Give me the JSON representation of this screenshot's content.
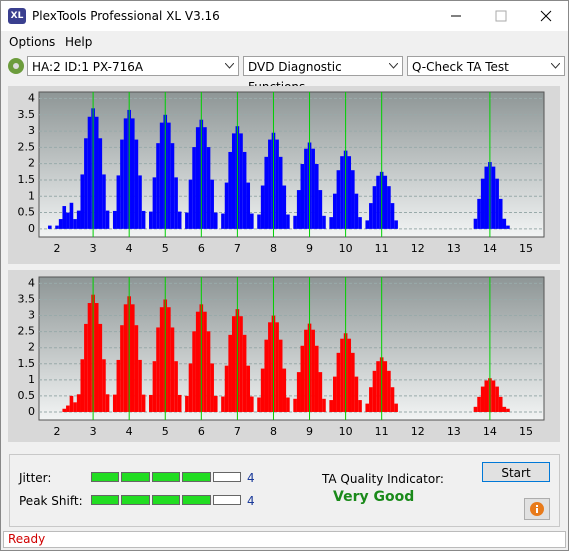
{
  "window": {
    "icon": "XL",
    "title": "PlexTools Professional XL V3.16"
  },
  "menu": [
    "Options",
    "Help"
  ],
  "toolbar": {
    "drive": "HA:2 ID:1  PX-716A",
    "function": "DVD Diagnostic Functions",
    "test": "Q-Check TA Test"
  },
  "chart_data": [
    {
      "type": "bar",
      "color": "#0000ff",
      "grid": true,
      "vline_color": "#00d000",
      "xlim": [
        1.5,
        15.5
      ],
      "xticks": [
        2,
        3,
        4,
        5,
        6,
        7,
        8,
        9,
        10,
        11,
        12,
        13,
        14,
        15
      ],
      "ylim": [
        -0.25,
        4.2
      ],
      "yticks": [
        4,
        3.5,
        3,
        2.5,
        2,
        1.5,
        1,
        0.5,
        0
      ],
      "vlines": [
        3,
        4,
        5,
        6,
        7,
        8,
        9,
        10,
        11,
        14
      ],
      "x": [
        1.8,
        1.9,
        2,
        2.1,
        2.2,
        2.3,
        2.4,
        2.5,
        2.6,
        2.7,
        2.8,
        2.9,
        3,
        3.1,
        3.2,
        3.3,
        3.4,
        3.5,
        3.6,
        3.7,
        3.8,
        3.9,
        4,
        4.1,
        4.2,
        4.3,
        4.4,
        4.5,
        4.6,
        4.7,
        4.8,
        4.9,
        5,
        5.1,
        5.2,
        5.3,
        5.4,
        5.5,
        5.6,
        5.7,
        5.8,
        5.9,
        6,
        6.1,
        6.2,
        6.3,
        6.4,
        6.5,
        6.6,
        6.7,
        6.8,
        6.9,
        7,
        7.1,
        7.2,
        7.3,
        7.4,
        7.5,
        7.6,
        7.7,
        7.8,
        7.9,
        8,
        8.1,
        8.2,
        8.3,
        8.4,
        8.5,
        8.6,
        8.7,
        8.8,
        8.9,
        9,
        9.1,
        9.2,
        9.3,
        9.4,
        9.5,
        9.6,
        9.7,
        9.8,
        9.9,
        10,
        10.1,
        10.2,
        10.3,
        10.4,
        10.5,
        10.6,
        10.7,
        10.8,
        10.9,
        11,
        11.1,
        11.2,
        11.3,
        11.4,
        11.5,
        11.6,
        11.7,
        11.8,
        11.9,
        12,
        12.1,
        12.2,
        12.3,
        12.4,
        12.5,
        12.6,
        12.7,
        12.8,
        12.9,
        13,
        13.1,
        13.2,
        13.3,
        13.4,
        13.5,
        13.6,
        13.7,
        13.8,
        13.9,
        14,
        14.1,
        14.2,
        14.3,
        14.4,
        14.5,
        14.6
      ],
      "values": [
        0.1,
        0,
        0.1,
        0.3,
        0.7,
        0.5,
        0.8,
        0.3,
        0.56,
        1.67,
        2.78,
        3.44,
        3.7,
        3.44,
        2.78,
        1.67,
        0.56,
        0,
        0.55,
        1.64,
        2.74,
        3.39,
        3.65,
        3.39,
        2.74,
        1.64,
        0.55,
        0,
        0.53,
        1.58,
        2.63,
        3.26,
        3.5,
        3.26,
        2.63,
        1.58,
        0.53,
        0,
        0.5,
        1.51,
        2.51,
        3.12,
        3.35,
        3.12,
        2.51,
        1.51,
        0.5,
        0,
        0.47,
        1.42,
        2.36,
        2.93,
        3.15,
        2.93,
        2.36,
        1.42,
        0.47,
        0,
        0.44,
        1.33,
        2.21,
        2.74,
        2.95,
        2.74,
        2.21,
        1.33,
        0.44,
        0,
        0.4,
        1.19,
        1.99,
        2.46,
        2.65,
        2.46,
        1.99,
        1.19,
        0.4,
        0,
        0.36,
        1.08,
        1.8,
        2.23,
        2.4,
        2.23,
        1.8,
        1.08,
        0.36,
        0,
        0.26,
        0.79,
        1.31,
        1.63,
        1.75,
        1.63,
        1.31,
        0.79,
        0.26,
        0,
        0,
        0,
        0,
        0,
        0,
        0,
        0,
        0,
        0,
        0,
        0,
        0,
        0,
        0,
        0,
        0,
        0,
        0,
        0,
        0,
        0.31,
        0.92,
        1.54,
        1.91,
        2.05,
        1.91,
        1.54,
        0.92,
        0.31,
        0.1,
        0
      ]
    },
    {
      "type": "bar",
      "color": "#ff0000",
      "grid": true,
      "vline_color": "#00d000",
      "xlim": [
        1.5,
        15.5
      ],
      "xticks": [
        2,
        3,
        4,
        5,
        6,
        7,
        8,
        9,
        10,
        11,
        12,
        13,
        14,
        15
      ],
      "ylim": [
        -0.25,
        4.2
      ],
      "yticks": [
        4,
        3.5,
        3,
        2.5,
        2,
        1.5,
        1,
        0.5,
        0
      ],
      "vlines": [
        3,
        4,
        5,
        6,
        7,
        8,
        9,
        10,
        11,
        14
      ],
      "x": [
        1.8,
        1.9,
        2,
        2.1,
        2.2,
        2.3,
        2.4,
        2.5,
        2.6,
        2.7,
        2.8,
        2.9,
        3,
        3.1,
        3.2,
        3.3,
        3.4,
        3.5,
        3.6,
        3.7,
        3.8,
        3.9,
        4,
        4.1,
        4.2,
        4.3,
        4.4,
        4.5,
        4.6,
        4.7,
        4.8,
        4.9,
        5,
        5.1,
        5.2,
        5.3,
        5.4,
        5.5,
        5.6,
        5.7,
        5.8,
        5.9,
        6,
        6.1,
        6.2,
        6.3,
        6.4,
        6.5,
        6.6,
        6.7,
        6.8,
        6.9,
        7,
        7.1,
        7.2,
        7.3,
        7.4,
        7.5,
        7.6,
        7.7,
        7.8,
        7.9,
        8,
        8.1,
        8.2,
        8.3,
        8.4,
        8.5,
        8.6,
        8.7,
        8.8,
        8.9,
        9,
        9.1,
        9.2,
        9.3,
        9.4,
        9.5,
        9.6,
        9.7,
        9.8,
        9.9,
        10,
        10.1,
        10.2,
        10.3,
        10.4,
        10.5,
        10.6,
        10.7,
        10.8,
        10.9,
        11,
        11.1,
        11.2,
        11.3,
        11.4,
        11.5,
        11.6,
        11.7,
        11.8,
        11.9,
        12,
        12.1,
        12.2,
        12.3,
        12.4,
        12.5,
        12.6,
        12.7,
        12.8,
        12.9,
        13,
        13.1,
        13.2,
        13.3,
        13.4,
        13.5,
        13.6,
        13.7,
        13.8,
        13.9,
        14,
        14.1,
        14.2,
        14.3,
        14.4,
        14.5,
        14.6
      ],
      "values": [
        0,
        0,
        0,
        0,
        0.1,
        0.2,
        0.5,
        0.3,
        0.55,
        1.64,
        2.74,
        3.39,
        3.65,
        3.39,
        2.74,
        1.64,
        0.55,
        0,
        0.54,
        1.62,
        2.7,
        3.35,
        3.6,
        3.35,
        2.7,
        1.62,
        0.54,
        0,
        0.53,
        1.58,
        2.63,
        3.26,
        3.5,
        3.26,
        2.63,
        1.58,
        0.53,
        0,
        0.5,
        1.51,
        2.51,
        3.12,
        3.35,
        3.12,
        2.51,
        1.51,
        0.5,
        0,
        0.48,
        1.44,
        2.4,
        2.98,
        3.2,
        2.98,
        2.4,
        1.44,
        0.48,
        0,
        0.45,
        1.35,
        2.25,
        2.79,
        3,
        2.79,
        2.25,
        1.35,
        0.45,
        0,
        0.41,
        1.24,
        2.06,
        2.56,
        2.75,
        2.56,
        2.06,
        1.24,
        0.41,
        0,
        0.37,
        1.1,
        1.84,
        2.28,
        2.45,
        2.28,
        1.84,
        1.1,
        0.37,
        0,
        0.26,
        0.77,
        1.28,
        1.58,
        1.7,
        1.58,
        1.28,
        0.77,
        0.26,
        0,
        0,
        0,
        0,
        0,
        0,
        0,
        0,
        0,
        0,
        0,
        0,
        0,
        0,
        0,
        0,
        0,
        0,
        0,
        0,
        0,
        0.16,
        0.47,
        0.79,
        0.98,
        1.05,
        0.98,
        0.79,
        0.47,
        0.16,
        0.1,
        0
      ]
    }
  ],
  "results": {
    "jitter_label": "Jitter:",
    "jitter": 4,
    "peak_shift_label": "Peak Shift:",
    "peak_shift": 4,
    "ta_label": "TA Quality Indicator:",
    "ta_value": "Very Good"
  },
  "buttons": {
    "start": "Start"
  },
  "status": "Ready"
}
